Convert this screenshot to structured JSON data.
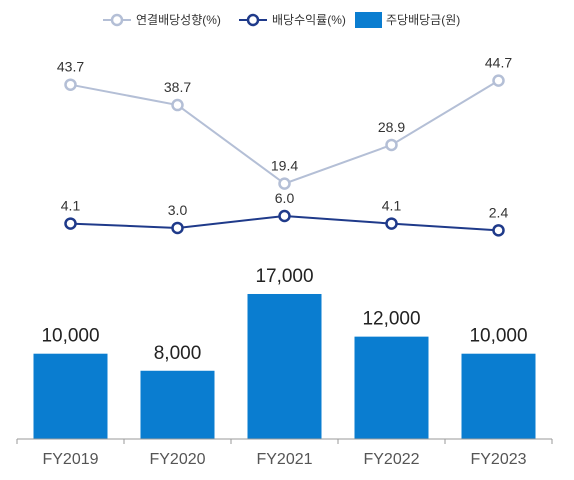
{
  "chart_data": {
    "type": "bar",
    "categories": [
      "FY2019",
      "FY2020",
      "FY2021",
      "FY2022",
      "FY2023"
    ],
    "series": [
      {
        "name": "연결배당성향(%)",
        "kind": "line",
        "color": "#b4bfd6",
        "values": [
          43.7,
          38.7,
          19.4,
          28.9,
          44.7
        ],
        "labels": [
          "43.7",
          "38.7",
          "19.4",
          "28.9",
          "44.7"
        ]
      },
      {
        "name": "배당수익률(%)",
        "kind": "line",
        "color": "#1f3a8a",
        "values": [
          4.1,
          3.0,
          6.0,
          4.1,
          2.4
        ],
        "labels": [
          "4.1",
          "3.0",
          "6.0",
          "4.1",
          "2.4"
        ]
      },
      {
        "name": "주당배당금(원)",
        "kind": "bar",
        "color": "#0a7dd0",
        "values": [
          10000,
          8000,
          17000,
          12000,
          10000
        ],
        "labels": [
          "10,000",
          "8,000",
          "17,000",
          "12,000",
          "10,000"
        ]
      }
    ],
    "legend_position": "top-center",
    "grid": false
  }
}
